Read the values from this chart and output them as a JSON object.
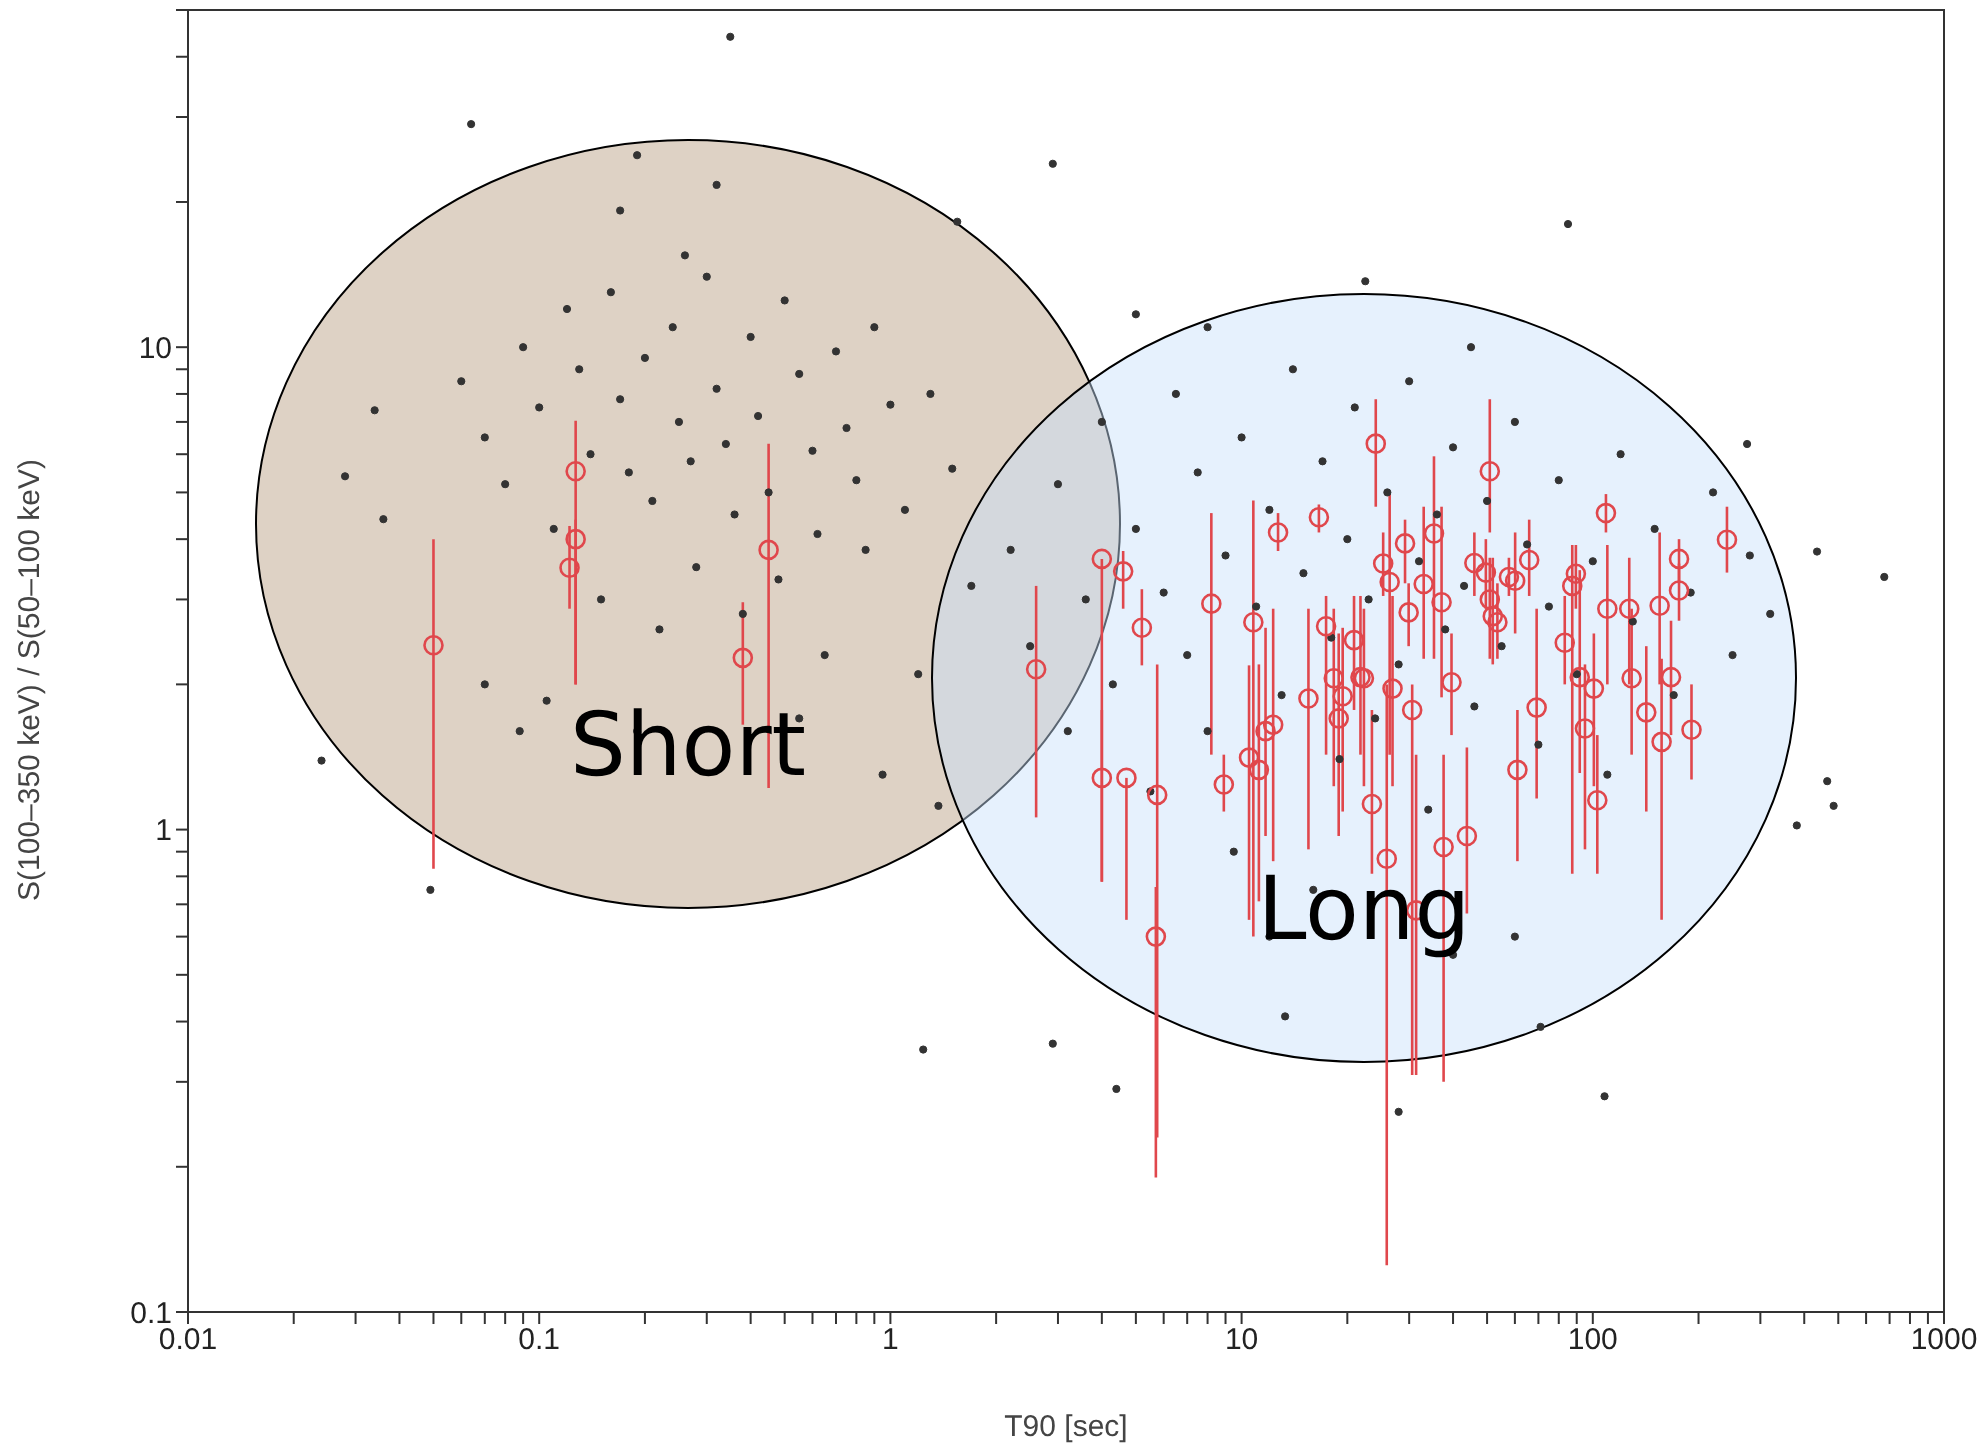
{
  "chart_data": {
    "type": "scatter",
    "xlabel": "T90 [sec]",
    "ylabel": "S(100–350 keV) / S(50–100 keV)",
    "log": "xy",
    "xlim": [
      0.01,
      1000
    ],
    "ylim": [
      0.1,
      50
    ],
    "xticks": [
      0.01,
      {
        "value": 0.02,
        "label": null
      },
      {
        "value": 0.03,
        "label": null
      },
      {
        "value": 0.04,
        "label": null
      },
      {
        "value": 0.05,
        "label": null
      },
      {
        "value": 0.06,
        "label": null
      },
      {
        "value": 0.07,
        "label": null
      },
      {
        "value": 0.08,
        "label": null
      },
      {
        "value": 0.09,
        "label": null
      },
      0.1,
      {
        "value": 0.2,
        "label": null
      },
      {
        "value": 0.3,
        "label": null
      },
      {
        "value": 0.4,
        "label": null
      },
      {
        "value": 0.5,
        "label": null
      },
      {
        "value": 0.6,
        "label": null
      },
      {
        "value": 0.7,
        "label": null
      },
      {
        "value": 0.8,
        "label": null
      },
      {
        "value": 0.9,
        "label": null
      },
      1,
      {
        "value": 2,
        "label": null
      },
      {
        "value": 3,
        "label": null
      },
      {
        "value": 4,
        "label": null
      },
      {
        "value": 5,
        "label": null
      },
      {
        "value": 6,
        "label": null
      },
      {
        "value": 7,
        "label": null
      },
      {
        "value": 8,
        "label": null
      },
      {
        "value": 9,
        "label": null
      },
      10,
      {
        "value": 20,
        "label": null
      },
      {
        "value": 30,
        "label": null
      },
      {
        "value": 40,
        "label": null
      },
      {
        "value": 50,
        "label": null
      },
      {
        "value": 60,
        "label": null
      },
      {
        "value": 70,
        "label": null
      },
      {
        "value": 80,
        "label": null
      },
      {
        "value": 90,
        "label": null
      },
      100,
      {
        "value": 200,
        "label": null
      },
      {
        "value": 300,
        "label": null
      },
      {
        "value": 400,
        "label": null
      },
      {
        "value": 500,
        "label": null
      },
      {
        "value": 600,
        "label": null
      },
      {
        "value": 700,
        "label": null
      },
      {
        "value": 800,
        "label": null
      },
      {
        "value": 900,
        "label": null
      },
      1000
    ],
    "yticks": [
      0.1,
      {
        "value": 0.2,
        "label": null
      },
      {
        "value": 0.3,
        "label": null
      },
      {
        "value": 0.4,
        "label": null
      },
      {
        "value": 0.5,
        "label": null
      },
      {
        "value": 0.6,
        "label": null
      },
      {
        "value": 0.7,
        "label": null
      },
      {
        "value": 0.8,
        "label": null
      },
      {
        "value": 0.9,
        "label": null
      },
      1,
      {
        "value": 2,
        "label": null
      },
      {
        "value": 3,
        "label": null
      },
      {
        "value": 4,
        "label": null
      },
      {
        "value": 5,
        "label": null
      },
      {
        "value": 6,
        "label": null
      },
      {
        "value": 7,
        "label": null
      },
      {
        "value": 8,
        "label": null
      },
      {
        "value": 9,
        "label": null
      },
      10,
      {
        "value": 20,
        "label": null
      },
      {
        "value": 30,
        "label": null
      },
      {
        "value": 40,
        "label": null
      },
      {
        "value": 50,
        "label": null
      }
    ],
    "annotations": [
      "Short",
      "Long"
    ],
    "series": [
      {
        "type": "scatter",
        "color": "#333333",
        "marker": "circle",
        "x": [
          0.35,
          0.064,
          0.19,
          2.9,
          85,
          0.024,
          0.049,
          1.24,
          2.9,
          4.4,
          108,
          28,
          676,
          485,
          381,
          435,
          275,
          71,
          13.3,
          5.0,
          22.5,
          0.028,
          0.034,
          0.036,
          0.32,
          0.17,
          1.55,
          465,
          0.088,
          0.105,
          1.37,
          0.06,
          0.07,
          0.08,
          0.09,
          0.1,
          0.11,
          0.12,
          0.13,
          0.14,
          0.15,
          0.16,
          0.17,
          0.18,
          0.2,
          0.21,
          0.22,
          0.24,
          0.25,
          0.27,
          0.28,
          0.3,
          0.32,
          0.34,
          0.36,
          0.38,
          0.4,
          0.42,
          0.45,
          0.48,
          0.5,
          0.55,
          0.6,
          0.62,
          0.65,
          0.7,
          0.75,
          0.8,
          0.85,
          0.9,
          1.0,
          1.1,
          1.2,
          1.3,
          1.5,
          1.7,
          0.19,
          0.55,
          0.95,
          0.07,
          0.26,
          2.2,
          2.5,
          3,
          3.2,
          3.6,
          4,
          4.3,
          5,
          5.5,
          6,
          6.5,
          7,
          7.5,
          8,
          9,
          9.5,
          10,
          11,
          12,
          13,
          14,
          15,
          16,
          17,
          18,
          19,
          20,
          21,
          23,
          24,
          26,
          28,
          30,
          32,
          34,
          36,
          38,
          40,
          43,
          46,
          50,
          55,
          60,
          65,
          70,
          75,
          80,
          90,
          100,
          110,
          120,
          130,
          150,
          170,
          190,
          220,
          250,
          280,
          320,
          40,
          60,
          12,
          8,
          45
        ],
        "values": [
          44,
          29,
          25,
          24,
          18,
          1.39,
          0.75,
          0.35,
          0.36,
          0.29,
          0.28,
          0.26,
          3.34,
          1.12,
          1.02,
          3.77,
          6.3,
          0.39,
          0.41,
          11.7,
          13.7,
          5.4,
          7.4,
          4.4,
          21.7,
          19.2,
          18.2,
          1.26,
          1.6,
          1.85,
          1.12,
          8.5,
          6.5,
          5.2,
          10,
          7.5,
          4.2,
          12,
          9,
          6,
          3,
          13,
          7.8,
          5.5,
          9.5,
          4.8,
          2.6,
          11,
          7,
          5.8,
          3.5,
          14,
          8.2,
          6.3,
          4.5,
          2.8,
          10.5,
          7.2,
          5,
          3.3,
          12.5,
          8.8,
          6.1,
          4.1,
          2.3,
          9.8,
          6.8,
          5.3,
          3.8,
          11,
          7.6,
          4.6,
          2.1,
          8,
          5.6,
          3.2,
          1.6,
          1.7,
          1.3,
          2.0,
          15.5,
          3.8,
          2.4,
          5.2,
          1.6,
          3,
          7,
          2,
          4.2,
          1.2,
          3.1,
          8,
          2.3,
          5.5,
          1.6,
          3.7,
          0.9,
          6.5,
          2.9,
          4.6,
          1.9,
          9,
          3.4,
          0.75,
          5.8,
          2.5,
          1.4,
          4,
          7.5,
          3,
          1.7,
          5,
          2.2,
          8.5,
          3.6,
          1.1,
          4.5,
          2.6,
          6.2,
          3.2,
          1.8,
          4.8,
          2.4,
          7,
          3.9,
          1.5,
          2.9,
          5.3,
          2.1,
          3.6,
          1.3,
          6,
          2.7,
          4.2,
          1.9,
          3.1,
          5,
          2.3,
          3.7,
          2.8,
          0.55,
          0.6,
          0.6,
          11,
          10
        ]
      },
      {
        "type": "scatter",
        "color": "#e0474c",
        "marker": "circle",
        "x": [
          0.05,
          0.122,
          0.127,
          0.127,
          0.38,
          0.45,
          2.6,
          4.0,
          4.0,
          4.6,
          4.7,
          5.2,
          5.75,
          5.7,
          8.2,
          8.9,
          10.8,
          10.5,
          11.2,
          11.7,
          12.3,
          12.7,
          15.5,
          16.6,
          17.4,
          18.3,
          18.9,
          19.4,
          20.9,
          21.8,
          22.3,
          23.5,
          24.1,
          25.3,
          25.9,
          26.4,
          26.9,
          29.2,
          29.9,
          30.6,
          31.4,
          33.0,
          35.3,
          37.1,
          37.6,
          39.6,
          43.8,
          46.0,
          49.6,
          50.9,
          50.9,
          51.9,
          53.5,
          57.7,
          60.1,
          61,
          65.9,
          69.2,
          83.2,
          87.4,
          89.5,
          91.8,
          95,
          100.7,
          103,
          109,
          110,
          127,
          129,
          142,
          155,
          157,
          167,
          176,
          176,
          191,
          241
        ],
        "values": [
          2.41,
          3.49,
          5.53,
          4.0,
          2.27,
          3.8,
          2.15,
          3.64,
          1.28,
          3.43,
          1.28,
          2.62,
          1.18,
          0.6,
          2.94,
          1.24,
          2.69,
          1.41,
          1.33,
          1.6,
          1.65,
          4.13,
          1.87,
          4.44,
          2.64,
          2.06,
          1.7,
          1.89,
          2.47,
          2.07,
          2.06,
          1.13,
          6.31,
          3.56,
          0.87,
          3.26,
          1.96,
          3.92,
          2.82,
          1.77,
          0.68,
          3.23,
          4.11,
          2.96,
          0.92,
          2.02,
          0.97,
          3.57,
          3.41,
          5.53,
          3.0,
          2.77,
          2.69,
          3.34,
          3.28,
          1.33,
          3.62,
          1.79,
          2.44,
          3.2,
          3.39,
          2.07,
          1.62,
          1.96,
          1.15,
          4.53,
          2.87,
          2.87,
          2.06,
          1.75,
          2.91,
          1.52,
          2.07,
          3.64,
          3.13,
          1.61,
          3.99
        ],
        "errors": [
          [
            0.83,
            4.0
          ],
          [
            2.87,
            4.26
          ],
          [
            2.0,
            7.04
          ],
          [
            2.0,
            4.39
          ],
          [
            1.65,
            2.96
          ],
          [
            1.22,
            6.31
          ],
          [
            1.06,
            3.2
          ],
          [
            0.78,
            3.64
          ],
          [
            0.78,
            1.77
          ],
          [
            2.87,
            3.78
          ],
          [
            0.65,
            1.28
          ],
          [
            2.19,
            3.15
          ],
          [
            0.23,
            2.2
          ],
          [
            0.19,
            0.76
          ],
          [
            1.43,
            4.53
          ],
          [
            1.09,
            1.43
          ],
          [
            0.6,
            4.81
          ],
          [
            0.65,
            2.19
          ],
          [
            0.71,
            2.2
          ],
          [
            0.97,
            2.62
          ],
          [
            0.86,
            2.87
          ],
          [
            3.78,
            4.53
          ],
          [
            0.91,
            2.87
          ],
          [
            4.13,
            4.72
          ],
          [
            1.43,
            3.05
          ],
          [
            1.23,
            2.87
          ],
          [
            0.97,
            2.55
          ],
          [
            1.09,
            2.62
          ],
          [
            1.77,
            3.05
          ],
          [
            1.43,
            3.05
          ],
          [
            1.23,
            2.87
          ],
          [
            0.81,
            1.77
          ],
          [
            4.67,
            7.8
          ],
          [
            3.05,
            4.13
          ],
          [
            0.125,
            2.0
          ],
          [
            1.43,
            4.96
          ],
          [
            1.23,
            3.05
          ],
          [
            3.24,
            4.39
          ],
          [
            2.4,
            3.24
          ],
          [
            0.31,
            2.0
          ],
          [
            0.31,
            1.43
          ],
          [
            2.26,
            4.67
          ],
          [
            2.26,
            5.94
          ],
          [
            1.88,
            4.67
          ],
          [
            0.3,
            1.43
          ],
          [
            1.57,
            2.55
          ],
          [
            0.67,
            1.48
          ],
          [
            3.05,
            4.13
          ],
          [
            2.87,
            4.0
          ],
          [
            4.13,
            7.8
          ],
          [
            2.26,
            3.66
          ],
          [
            2.2,
            3.66
          ],
          [
            2.26,
            3.24
          ],
          [
            3.05,
            3.66
          ],
          [
            2.55,
            4.13
          ],
          [
            0.86,
            1.77
          ],
          [
            3.05,
            4.39
          ],
          [
            1.16,
            2.87
          ],
          [
            2.0,
            3.05
          ],
          [
            0.81,
            3.89
          ],
          [
            2.87,
            3.89
          ],
          [
            1.31,
            3.45
          ],
          [
            0.91,
            2.2
          ],
          [
            1.23,
            2.55
          ],
          [
            0.81,
            1.57
          ],
          [
            4.13,
            4.96
          ],
          [
            2.0,
            3.89
          ],
          [
            2.0,
            3.66
          ],
          [
            1.43,
            2.87
          ],
          [
            1.09,
            2.4
          ],
          [
            2.0,
            4.13
          ],
          [
            0.65,
            2.26
          ],
          [
            1.57,
            2.71
          ],
          [
            3.24,
            4.0
          ],
          [
            2.71,
            3.56
          ],
          [
            1.27,
            2.0
          ],
          [
            3.41,
            4.67
          ]
        ]
      }
    ]
  }
}
